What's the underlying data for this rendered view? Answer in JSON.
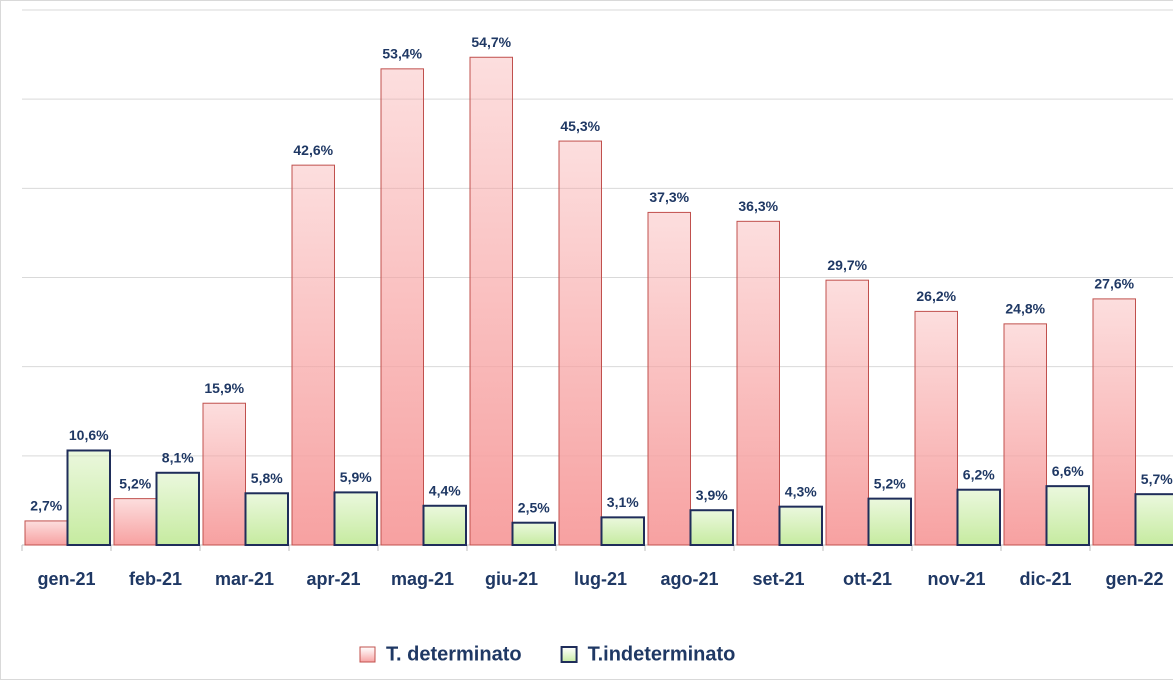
{
  "chart_data": {
    "type": "bar",
    "categories": [
      "gen-21",
      "feb-21",
      "mar-21",
      "apr-21",
      "mag-21",
      "giu-21",
      "lug-21",
      "ago-21",
      "set-21",
      "ott-21",
      "nov-21",
      "dic-21",
      "gen-22"
    ],
    "series": [
      {
        "name": "T. determinato",
        "color": "#f7a1a1",
        "stroke": "#c0504d",
        "values": [
          2.7,
          5.2,
          15.9,
          42.6,
          53.4,
          54.7,
          45.3,
          37.3,
          36.3,
          29.7,
          26.2,
          24.8,
          27.6
        ],
        "value_labels": [
          "2,7%",
          "5,2%",
          "15,9%",
          "42,6%",
          "53,4%",
          "54,7%",
          "45,3%",
          "37,3%",
          "36,3%",
          "29,7%",
          "26,2%",
          "24,8%",
          "27,6%"
        ]
      },
      {
        "name": "T.indeterminato",
        "color": "#c6eba0",
        "stroke": "#1f2d5a",
        "values": [
          10.6,
          8.1,
          5.8,
          5.9,
          4.4,
          2.5,
          3.1,
          3.9,
          4.3,
          5.2,
          6.2,
          6.6,
          5.7
        ],
        "value_labels": [
          "10,6%",
          "8,1%",
          "5,8%",
          "5,9%",
          "4,4%",
          "2,5%",
          "3,1%",
          "3,9%",
          "4,3%",
          "5,2%",
          "6,2%",
          "6,6%",
          "5,7%"
        ]
      }
    ],
    "ylim": [
      0,
      60
    ],
    "yticks": [
      0,
      10,
      20,
      30,
      40,
      50,
      60
    ],
    "grid": true,
    "legend": "bottom"
  }
}
